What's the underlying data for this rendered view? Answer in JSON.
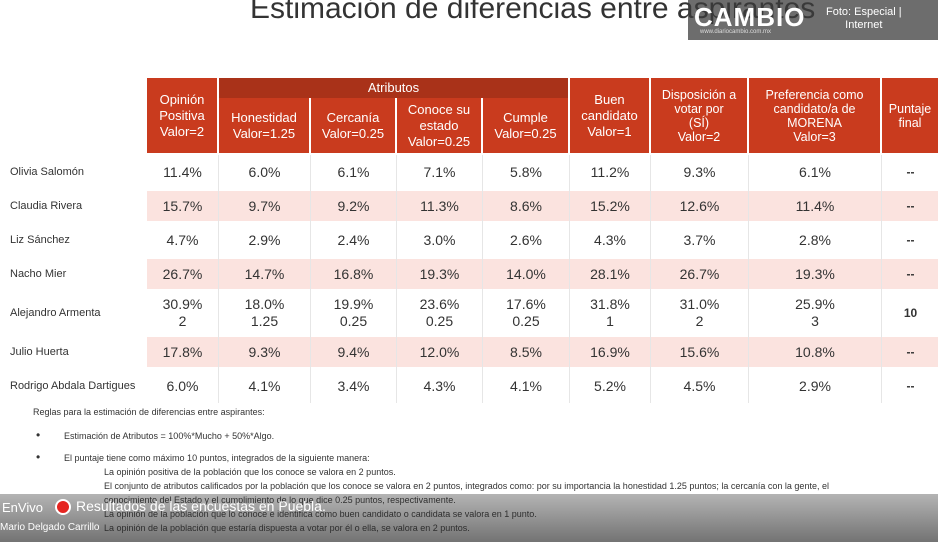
{
  "header": {
    "title": "Estimación de diferencias entre aspirantes",
    "logo": "CAMBIO",
    "logo_url": "www.diariocambio.com.mx",
    "credit": "Foto: Especial |\nInternet"
  },
  "table": {
    "group_header": "Atributos",
    "columns": [
      "Opinión\nPositiva\nValor=2",
      "Honestidad\nValor=1.25",
      "Cercanía\nValor=0.25",
      "Conoce su\nestado\nValor=0.25",
      "Cumple\nValor=0.25",
      "Buen\ncandidato\nValor=1",
      "Disposición a\nvotar por\n(SÍ)\nValor=2",
      "Preferencia como\ncandidato/a de\nMORENA\nValor=3",
      "Puntaje\nfinal"
    ],
    "rows": [
      {
        "name": "Olivia Salomón",
        "cells": [
          "11.4%",
          "6.0%",
          "6.1%",
          "7.1%",
          "5.8%",
          "11.2%",
          "9.3%",
          "6.1%",
          "--"
        ]
      },
      {
        "name": "Claudia Rivera",
        "cells": [
          "15.7%",
          "9.7%",
          "9.2%",
          "11.3%",
          "8.6%",
          "15.2%",
          "12.6%",
          "11.4%",
          "--"
        ]
      },
      {
        "name": "Liz Sánchez",
        "cells": [
          "4.7%",
          "2.9%",
          "2.4%",
          "3.0%",
          "2.6%",
          "4.3%",
          "3.7%",
          "2.8%",
          "--"
        ]
      },
      {
        "name": "Nacho Mier",
        "cells": [
          "26.7%",
          "14.7%",
          "16.8%",
          "19.3%",
          "14.0%",
          "28.1%",
          "26.7%",
          "19.3%",
          "--"
        ]
      },
      {
        "name": "Alejandro Armenta",
        "cells": [
          "30.9%\n2",
          "18.0%\n1.25",
          "19.9%\n0.25",
          "23.6%\n0.25",
          "17.6%\n0.25",
          "31.8%\n1",
          "31.0%\n2",
          "25.9%\n3",
          "10"
        ]
      },
      {
        "name": "Julio Huerta",
        "cells": [
          "17.8%",
          "9.3%",
          "9.4%",
          "12.0%",
          "8.5%",
          "16.9%",
          "15.6%",
          "10.8%",
          "--"
        ]
      },
      {
        "name": "Rodrigo Abdala Dartigues",
        "cells": [
          "6.0%",
          "4.1%",
          "3.4%",
          "4.3%",
          "4.1%",
          "5.2%",
          "4.5%",
          "2.9%",
          "--"
        ]
      }
    ]
  },
  "notes": {
    "heading": "Reglas para la estimación de diferencias entre aspirantes:",
    "bullets": [
      {
        "text": "Estimación de Atributos = 100%*Mucho + 50%*Algo.",
        "items": []
      },
      {
        "text": "El puntaje tiene como máximo 10 puntos, integrados de la siguiente manera:",
        "items": [
          "La opinión positiva de la población que los conoce se valora en 2 puntos.",
          "El conjunto de atributos calificados por la población que los conoce se valora en 2 puntos, integrados como: por su importancia la honestidad 1.25 puntos; la cercanía con la gente, el",
          "conocimiento del Estado y el cumplimiento de lo que dice 0.25 puntos, respectivamente.",
          "La opinión de la población que lo conoce e identifica como buen candidato o candidata se valora en 1 punto.",
          "La opinión de la población que estaría dispuesta a votar por él o ella, se valora en 2 puntos."
        ]
      }
    ]
  },
  "overlay": {
    "live": "EnVivo",
    "headline": "Resultados de las encuestas en Puebla.",
    "speaker": "Mario Delgado Carrillo"
  }
}
